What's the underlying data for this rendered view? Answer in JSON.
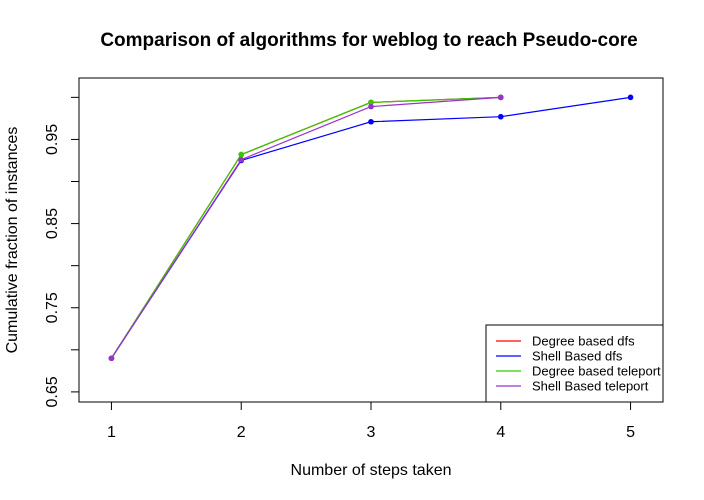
{
  "chart_data": {
    "type": "line",
    "title": "Comparison of algorithms for weblog to reach Pseudo-core",
    "xlabel": "Number of steps taken",
    "ylabel": "Cumulative fraction of instances",
    "xlim": [
      0.75,
      5.25
    ],
    "ylim": [
      0.638,
      1.023
    ],
    "x_ticks": [
      1,
      2,
      3,
      4,
      5
    ],
    "y_ticks": [
      0.65,
      0.7,
      0.75,
      0.8,
      0.85,
      0.9,
      0.95,
      1.0
    ],
    "y_tick_labels": [
      {
        "value": 0.65,
        "label": "0.65"
      },
      {
        "value": 0.75,
        "label": "0.75"
      },
      {
        "value": 0.85,
        "label": "0.85"
      },
      {
        "value": 0.95,
        "label": "0.95"
      }
    ],
    "grid": false,
    "legend_position": "bottom-right",
    "series": [
      {
        "name": "Degree based dfs",
        "color": "#ff0000",
        "x": [
          1,
          2,
          3,
          4
        ],
        "values": [
          0.69,
          0.932,
          0.994,
          1.0
        ]
      },
      {
        "name": "Shell Based dfs",
        "color": "#0000ff",
        "x": [
          1,
          2,
          3,
          4,
          5
        ],
        "values": [
          0.69,
          0.925,
          0.971,
          0.977,
          1.0
        ]
      },
      {
        "name": "Degree based teleport",
        "color": "#33cc00",
        "x": [
          1,
          2,
          3,
          4
        ],
        "values": [
          0.69,
          0.932,
          0.994,
          1.0
        ]
      },
      {
        "name": "Shell Based teleport",
        "color": "#9933cc",
        "x": [
          1,
          2,
          3,
          4
        ],
        "values": [
          0.69,
          0.926,
          0.989,
          1.0
        ]
      }
    ]
  }
}
